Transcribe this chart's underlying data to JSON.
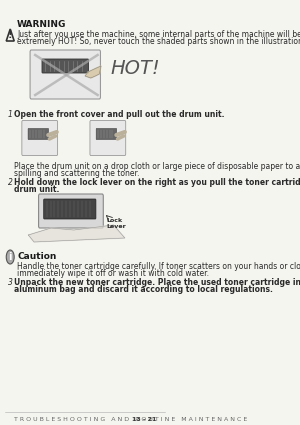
{
  "bg_color": "#f5f5f0",
  "page_bg": "#f5f5f0",
  "warning_title": "WARNING",
  "warning_text1": "Just after you use the machine, some internal parts of the machine will be",
  "warning_text2": "extremely HOT! So, never touch the shaded parts shown in the illustration.",
  "hot_label": "HOT!",
  "step1_num": "1",
  "step1_text": "Open the front cover and pull out the drum unit.",
  "step1b_text1": "Place the drum unit on a drop cloth or large piece of disposable paper to avoid",
  "step1b_text2": "spilling and scattering the toner.",
  "step2_num": "2",
  "step2_text1": "Hold down the lock lever on the right as you pull the toner cartridge out of the",
  "step2_text2": "drum unit.",
  "lock_lever": "Lock\nLever",
  "caution_title": "Caution",
  "caution_text1": "Handle the toner cartridge carefully. If toner scatters on your hands or clothes,",
  "caution_text2": "immediately wipe it off or wash it with cold water.",
  "step3_num": "3",
  "step3_text1": "Unpack the new toner cartridge. Place the used toner cartridge into the",
  "step3_text2": "aluminum bag and discard it according to local regulations.",
  "footer": "T R O U B L E S H O O T I N G   A N D   R O U T I N E   M A I N T E N A N C E",
  "footer_page": "13 - 21",
  "text_color": "#2a2a2a",
  "warning_color": "#1a1a1a",
  "hot_color": "#555555",
  "line_color": "#888888",
  "icon_color": "#333333"
}
